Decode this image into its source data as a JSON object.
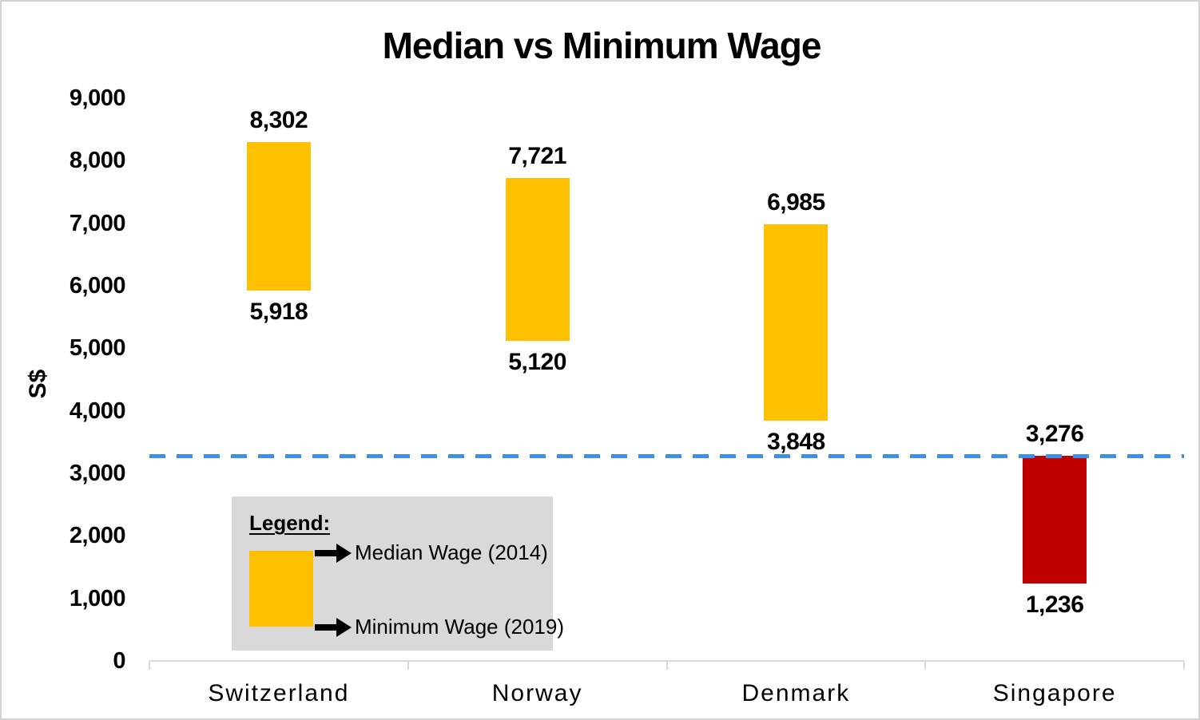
{
  "frame": {
    "background": "#FFFFFF",
    "border_color": "#D4D4D4"
  },
  "chart_data": {
    "type": "bar",
    "subtype": "floating-range-bars",
    "title": "Median vs Minimum Wage",
    "xlabel": "",
    "ylabel": "S$",
    "ylim": [
      0,
      9000
    ],
    "grid": false,
    "axis_color": "#D9D9D9",
    "text_color": "#000000",
    "yticks": {
      "values": [
        0,
        1000,
        2000,
        3000,
        4000,
        5000,
        6000,
        7000,
        8000,
        9000
      ],
      "labels": [
        "0",
        "1,000",
        "2,000",
        "3,000",
        "4,000",
        "5,000",
        "6,000",
        "7,000",
        "8,000",
        "9,000"
      ]
    },
    "categories": [
      "Switzerland",
      "Norway",
      "Denmark",
      "Singapore"
    ],
    "series": [
      {
        "name": "Median Wage (2014)",
        "role": "bar-top",
        "values": [
          8302,
          7721,
          6985,
          3276
        ],
        "labels": [
          "8,302",
          "7,721",
          "6,985",
          "3,276"
        ]
      },
      {
        "name": "Minimum Wage (2019)",
        "role": "bar-bottom",
        "values": [
          5918,
          5120,
          3848,
          1236
        ],
        "labels": [
          "5,918",
          "5,120",
          "3,848",
          "1,236"
        ]
      }
    ],
    "bar_colors": [
      "#FFC000",
      "#FFC000",
      "#FFC000",
      "#C00000"
    ],
    "reference_line": {
      "value": 3276,
      "color": "#3D8FE8",
      "style": "dashed"
    }
  },
  "legend": {
    "title": "Legend:",
    "background": "#D9D9D9",
    "swatch_color": "#FFC000",
    "items": [
      {
        "label": "Median Wage (2014)",
        "position": "top"
      },
      {
        "label": "Minimum Wage (2019)",
        "position": "bottom"
      }
    ]
  }
}
